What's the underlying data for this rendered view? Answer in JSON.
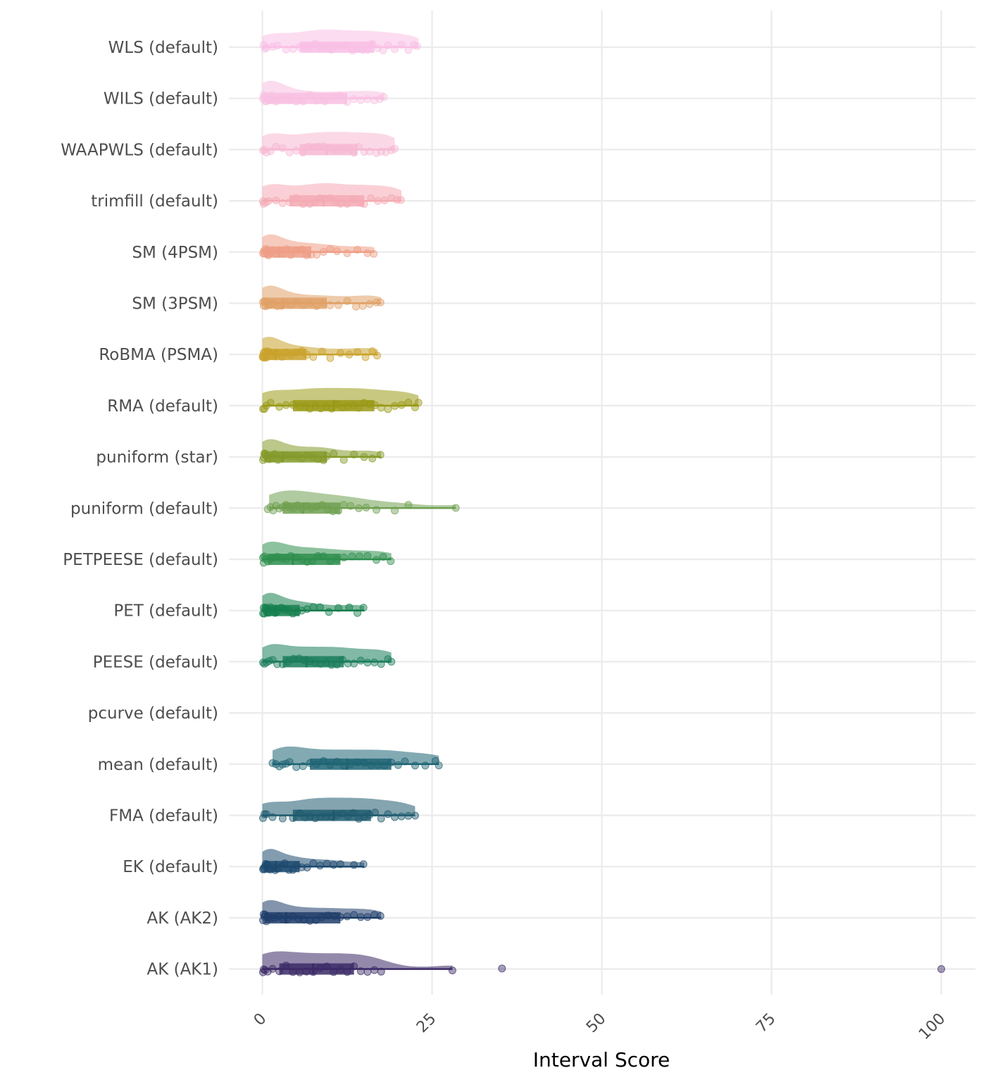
{
  "chart_data": {
    "type": "raincloud",
    "title": "",
    "xlabel": "Interval Score",
    "ylabel": "",
    "xlim": [
      0,
      100
    ],
    "x_ticks": [
      0,
      25,
      50,
      75,
      100
    ],
    "x_tick_labels": [
      "0",
      "25",
      "50",
      "75",
      "100"
    ],
    "grid": true,
    "legend": "none",
    "categories": [
      "WLS (default)",
      "WILS (default)",
      "WAAPWLS (default)",
      "trimfill (default)",
      "SM (4PSM)",
      "SM (3PSM)",
      "RoBMA (PSMA)",
      "RMA (default)",
      "puniform (star)",
      "puniform (default)",
      "PETPEESE (default)",
      "PET (default)",
      "PEESE (default)",
      "pcurve (default)",
      "mean (default)",
      "FMA (default)",
      "EK (default)",
      "AK (AK2)",
      "AK (AK1)"
    ],
    "series": [
      {
        "name": "WLS (default)",
        "color": "#f9bfe5",
        "min": 0.0,
        "q1": 5.5,
        "median": 10.0,
        "q3": 16.5,
        "max": 23.0,
        "points": [
          0.2,
          0.4,
          0.6,
          1.5,
          2.2,
          3.5,
          4.5,
          5.5,
          6.2,
          7.0,
          7.8,
          8.5,
          9.0,
          9.6,
          10.2,
          11.0,
          11.8,
          12.5,
          13.3,
          14.0,
          14.8,
          15.5,
          16.2,
          17.0,
          17.8,
          18.5,
          19.5,
          20.5,
          21.5,
          22.3,
          22.8
        ]
      },
      {
        "name": "WILS (default)",
        "color": "#f8c0e2",
        "min": 0.0,
        "q1": 0.6,
        "median": 4.0,
        "q3": 12.5,
        "max": 18.0,
        "points": [
          0.1,
          0.2,
          0.3,
          0.4,
          0.5,
          0.6,
          0.8,
          1.0,
          1.3,
          1.6,
          2.0,
          2.5,
          3.0,
          3.5,
          4.2,
          5.0,
          6.0,
          7.0,
          8.0,
          9.2,
          10.5,
          11.5,
          12.5,
          13.5,
          14.5,
          15.5,
          16.5,
          17.3,
          17.9
        ]
      },
      {
        "name": "WAAPWLS (default)",
        "color": "#f7b8d2",
        "min": 0.0,
        "q1": 5.5,
        "median": 9.5,
        "q3": 14.0,
        "max": 19.5,
        "points": [
          0.1,
          0.3,
          0.6,
          1.2,
          2.0,
          3.0,
          4.0,
          5.0,
          6.0,
          6.8,
          7.5,
          8.2,
          9.0,
          9.8,
          10.5,
          11.2,
          12.0,
          12.8,
          13.5,
          14.2,
          15.0,
          15.8,
          16.8,
          17.5,
          18.2,
          19.0,
          19.5
        ]
      },
      {
        "name": "trimfill (default)",
        "color": "#f5aab4",
        "min": 0.0,
        "q1": 4.0,
        "median": 9.0,
        "q3": 15.0,
        "max": 20.5,
        "points": [
          0.1,
          0.2,
          0.5,
          0.9,
          2.0,
          3.0,
          4.0,
          5.0,
          6.0,
          7.0,
          7.8,
          8.5,
          9.2,
          10.0,
          10.8,
          11.5,
          12.5,
          13.5,
          14.5,
          15.0,
          16.0,
          17.0,
          18.0,
          19.0,
          19.8,
          20.4
        ]
      },
      {
        "name": "SM (4PSM)",
        "color": "#ee9e86",
        "min": 0.0,
        "q1": 0.4,
        "median": 2.5,
        "q3": 7.2,
        "max": 16.5,
        "points": [
          0.1,
          0.2,
          0.3,
          0.4,
          0.5,
          0.7,
          0.9,
          1.2,
          1.6,
          2.0,
          2.5,
          3.0,
          3.6,
          4.2,
          5.0,
          5.8,
          6.5,
          7.2,
          8.0,
          9.0,
          10.0,
          11.0,
          12.5,
          14.0,
          15.5,
          16.4
        ]
      },
      {
        "name": "SM (3PSM)",
        "color": "#e0a168",
        "min": 0.0,
        "q1": 0.3,
        "median": 3.0,
        "q3": 9.5,
        "max": 17.5,
        "points": [
          0.1,
          0.2,
          0.3,
          0.4,
          0.5,
          0.7,
          1.0,
          1.3,
          1.7,
          2.2,
          2.8,
          3.5,
          4.2,
          5.0,
          6.0,
          7.0,
          8.0,
          9.0,
          10.0,
          11.2,
          12.5,
          13.8,
          14.8,
          15.8,
          16.8,
          17.4
        ]
      },
      {
        "name": "RoBMA (PSMA)",
        "color": "#c9a22c",
        "min": 0.0,
        "q1": 0.2,
        "median": 2.0,
        "q3": 6.5,
        "max": 17.0,
        "points": [
          0.05,
          0.1,
          0.15,
          0.2,
          0.3,
          0.4,
          0.6,
          0.8,
          1.0,
          1.4,
          1.8,
          2.3,
          2.9,
          3.5,
          4.2,
          5.0,
          5.8,
          6.6,
          7.5,
          8.8,
          10.0,
          11.5,
          12.8,
          14.0,
          15.2,
          16.2,
          16.9
        ]
      },
      {
        "name": "RMA (default)",
        "color": "#9a9a18",
        "min": 0.0,
        "q1": 4.5,
        "median": 10.5,
        "q3": 16.5,
        "max": 23.0,
        "points": [
          0.1,
          0.3,
          0.6,
          1.2,
          2.5,
          3.5,
          4.5,
          5.5,
          6.3,
          7.0,
          7.8,
          8.6,
          9.4,
          10.2,
          11.0,
          11.8,
          12.6,
          13.4,
          14.2,
          15.0,
          15.8,
          16.6,
          17.5,
          18.5,
          19.5,
          20.5,
          21.5,
          22.5,
          23.0
        ]
      },
      {
        "name": "puniform (star)",
        "color": "#849a2a",
        "min": 0.0,
        "q1": 0.3,
        "median": 3.0,
        "q3": 9.5,
        "max": 17.5,
        "points": [
          0.1,
          0.2,
          0.3,
          0.4,
          0.5,
          0.7,
          1.0,
          1.4,
          1.8,
          2.3,
          2.9,
          3.5,
          4.2,
          5.0,
          5.8,
          6.6,
          7.4,
          8.2,
          9.0,
          9.5,
          10.5,
          12.0,
          13.5,
          15.0,
          16.2,
          17.4
        ]
      },
      {
        "name": "puniform (default)",
        "color": "#6fa050",
        "min": 1.0,
        "q1": 3.0,
        "median": 6.0,
        "q3": 11.5,
        "max": 28.5,
        "points": [
          0.8,
          1.2,
          1.6,
          2.0,
          2.5,
          3.0,
          3.5,
          4.0,
          4.6,
          5.2,
          5.8,
          6.5,
          7.2,
          8.0,
          8.8,
          9.6,
          10.4,
          11.2,
          12.0,
          13.0,
          14.2,
          15.3,
          16.8,
          19.5,
          21.5,
          28.5
        ]
      },
      {
        "name": "PETPEESE (default)",
        "color": "#2f8f4e",
        "min": 0.0,
        "q1": 0.8,
        "median": 4.5,
        "q3": 11.5,
        "max": 19.0,
        "points": [
          0.1,
          0.2,
          0.3,
          0.5,
          0.8,
          1.2,
          1.7,
          2.2,
          2.8,
          3.5,
          4.2,
          5.0,
          5.8,
          6.6,
          7.4,
          8.2,
          9.0,
          10.0,
          11.0,
          12.0,
          13.2,
          14.3,
          15.5,
          16.8,
          17.8,
          18.9
        ]
      },
      {
        "name": "PET (default)",
        "color": "#157f4d",
        "min": 0.0,
        "q1": 0.3,
        "median": 2.0,
        "q3": 5.5,
        "max": 15.0,
        "points": [
          0.1,
          0.2,
          0.3,
          0.4,
          0.5,
          0.7,
          0.9,
          1.2,
          1.5,
          1.9,
          2.3,
          2.8,
          3.3,
          3.9,
          4.5,
          5.1,
          5.8,
          6.6,
          7.5,
          8.5,
          9.8,
          11.2,
          12.8,
          14.0,
          14.9
        ]
      },
      {
        "name": "PEESE (default)",
        "color": "#1a7d5c",
        "min": 0.0,
        "q1": 3.0,
        "median": 6.5,
        "q3": 12.0,
        "max": 19.0,
        "points": [
          0.1,
          0.3,
          0.6,
          1.0,
          1.5,
          2.2,
          3.0,
          3.8,
          4.6,
          5.4,
          6.2,
          7.0,
          7.8,
          8.6,
          9.4,
          10.2,
          11.0,
          11.8,
          12.6,
          13.5,
          14.5,
          15.5,
          16.5,
          17.5,
          18.5,
          19.0
        ]
      },
      {
        "name": "pcurve (default)",
        "color": "#1a6e70",
        "min": null,
        "q1": null,
        "median": null,
        "q3": null,
        "max": null,
        "points": []
      },
      {
        "name": "mean (default)",
        "color": "#1e6474",
        "min": 1.5,
        "q1": 7.0,
        "median": 12.5,
        "q3": 19.0,
        "max": 26.0,
        "points": [
          1.5,
          2.0,
          2.5,
          3.0,
          3.5,
          4.0,
          5.0,
          6.0,
          7.0,
          8.0,
          9.0,
          10.0,
          11.0,
          12.0,
          13.0,
          14.0,
          15.0,
          16.0,
          17.0,
          18.0,
          19.0,
          20.0,
          21.0,
          22.5,
          24.0,
          25.5,
          26.0
        ]
      },
      {
        "name": "FMA (default)",
        "color": "#1f5a6e",
        "min": 0.0,
        "q1": 4.5,
        "median": 10.5,
        "q3": 16.0,
        "max": 22.5,
        "points": [
          0.1,
          0.3,
          0.6,
          1.5,
          3.0,
          4.5,
          5.5,
          6.3,
          7.0,
          7.8,
          8.6,
          9.4,
          10.2,
          11.0,
          11.8,
          12.6,
          13.4,
          14.2,
          15.0,
          15.8,
          16.6,
          17.5,
          18.5,
          19.5,
          20.5,
          21.5,
          22.5
        ]
      },
      {
        "name": "EK (default)",
        "color": "#1d4a6e",
        "min": 0.0,
        "q1": 0.3,
        "median": 2.0,
        "q3": 5.5,
        "max": 15.0,
        "points": [
          0.1,
          0.2,
          0.3,
          0.4,
          0.5,
          0.7,
          0.9,
          1.2,
          1.5,
          1.9,
          2.3,
          2.8,
          3.3,
          3.9,
          4.5,
          5.1,
          5.8,
          6.6,
          7.5,
          8.5,
          9.5,
          10.5,
          11.5,
          13.5,
          14.9
        ]
      },
      {
        "name": "AK (AK2)",
        "color": "#1f3d6a",
        "min": 0.0,
        "q1": 0.3,
        "median": 3.5,
        "q3": 11.5,
        "max": 17.5,
        "points": [
          0.1,
          0.2,
          0.3,
          0.4,
          0.6,
          0.9,
          1.3,
          1.8,
          2.4,
          3.0,
          3.7,
          4.5,
          5.3,
          6.1,
          7.0,
          7.9,
          8.8,
          9.7,
          10.6,
          11.5,
          12.5,
          13.5,
          14.5,
          15.5,
          16.5,
          17.4
        ]
      },
      {
        "name": "AK (AK1)",
        "color": "#3b2a66",
        "min": 0.0,
        "q1": 2.5,
        "median": 7.5,
        "q3": 13.5,
        "max": 28.0,
        "points": [
          0.1,
          0.2,
          0.4,
          0.8,
          1.5,
          2.5,
          3.5,
          4.5,
          5.5,
          6.5,
          7.5,
          8.5,
          9.5,
          10.5,
          11.5,
          12.5,
          13.5,
          14.5,
          15.5,
          16.5,
          17.5,
          28.0,
          35.3,
          100.0
        ]
      }
    ]
  }
}
